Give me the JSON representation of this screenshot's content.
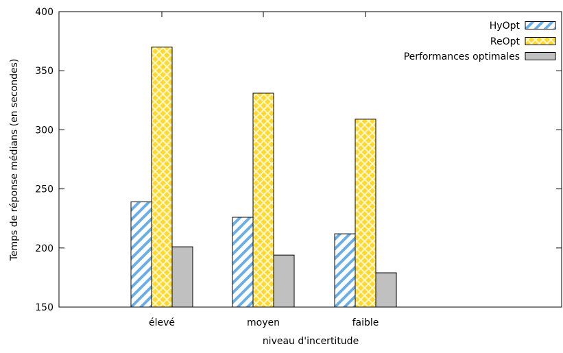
{
  "chart_data": {
    "type": "bar",
    "title": "",
    "xlabel": "niveau d'incertitude",
    "ylabel": "Temps de réponse médians (en secondes)",
    "categories": [
      "élevé",
      "moyen",
      "faible"
    ],
    "series": [
      {
        "name": "HyOpt",
        "values": [
          239,
          226,
          212
        ]
      },
      {
        "name": "ReOpt",
        "values": [
          370,
          331,
          309
        ]
      },
      {
        "name": "Performances optimales",
        "values": [
          201,
          194,
          179
        ]
      }
    ],
    "ylim": [
      150,
      400
    ],
    "yticks": [
      "150",
      "200",
      "250",
      "300",
      "350",
      "400"
    ],
    "legend_position": "top-right",
    "grid": false,
    "colors": {
      "hyopt_stripe": "#6aaee8",
      "reopt_fill": "#ffd930",
      "optimal_fill": "#c0c0c0",
      "outline": "#000000"
    }
  }
}
